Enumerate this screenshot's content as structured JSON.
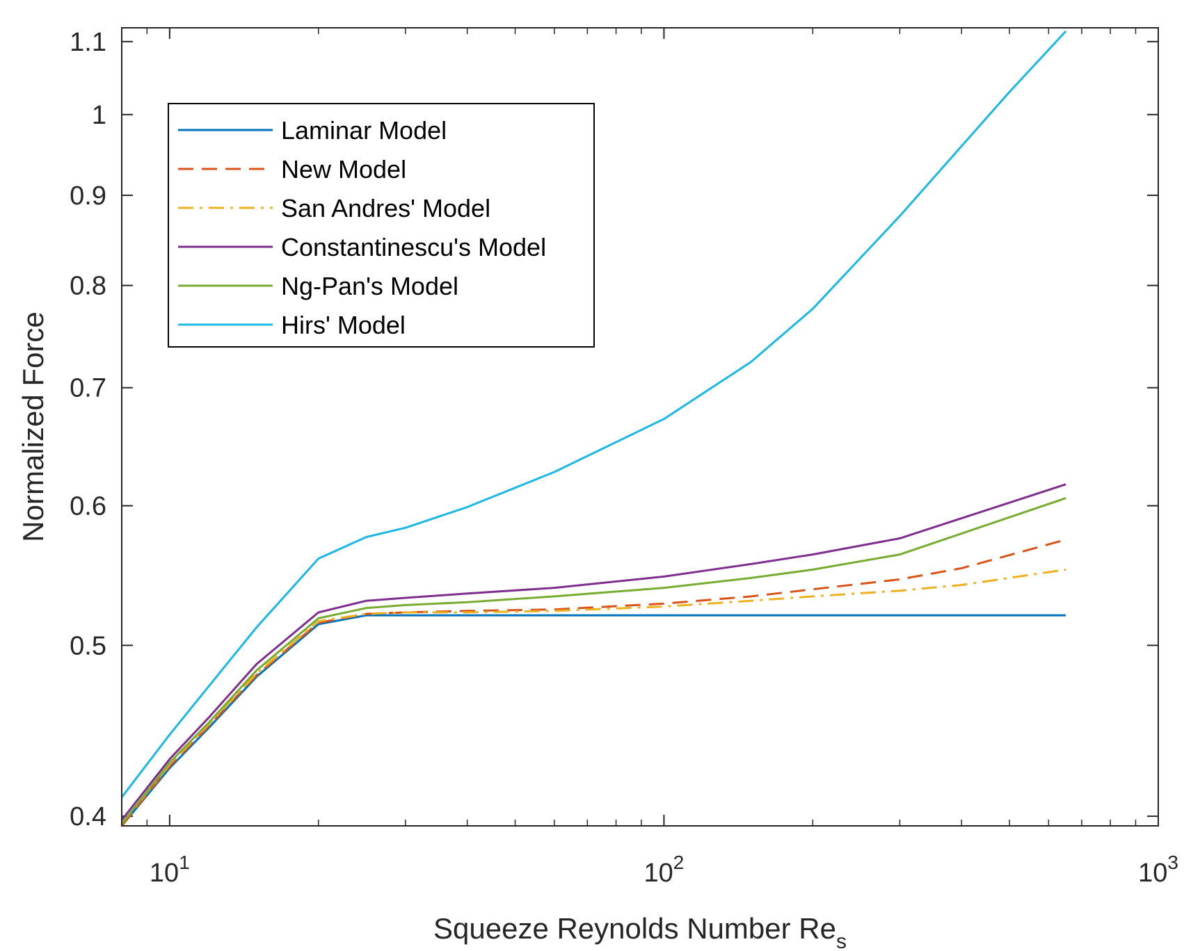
{
  "chart_data": {
    "type": "line",
    "xscale": "log",
    "yscale": "log",
    "xlabel": "Squeeze Reynolds Number Re",
    "xlabel_subscript": "s",
    "ylabel": "Normalized Force",
    "xlim": [
      8,
      1000
    ],
    "ylim": [
      0.395,
      1.12
    ],
    "xticks": [
      {
        "value": 10,
        "base": "10",
        "exp": "1"
      },
      {
        "value": 100,
        "base": "10",
        "exp": "2"
      },
      {
        "value": 1000,
        "base": "10",
        "exp": "3"
      }
    ],
    "yticks": [
      {
        "value": 0.4,
        "label": "0.4"
      },
      {
        "value": 0.5,
        "label": "0.5"
      },
      {
        "value": 0.6,
        "label": "0.6"
      },
      {
        "value": 0.7,
        "label": "0.7"
      },
      {
        "value": 0.8,
        "label": "0.8"
      },
      {
        "value": 0.9,
        "label": "0.9"
      },
      {
        "value": 1.0,
        "label": "1"
      },
      {
        "value": 1.1,
        "label": "1.1"
      }
    ],
    "legend_position": "top-left",
    "series": [
      {
        "name": "Laminar Model",
        "color": "#0072BD",
        "dash": "solid",
        "x": [
          8,
          10,
          12,
          15,
          20,
          25,
          30,
          40,
          60,
          100,
          200,
          300,
          650
        ],
        "y": [
          0.395,
          0.426,
          0.449,
          0.48,
          0.514,
          0.52,
          0.52,
          0.52,
          0.52,
          0.52,
          0.52,
          0.52,
          0.52
        ]
      },
      {
        "name": "New Model",
        "color": "#D95319",
        "dash": "dashed",
        "x": [
          8,
          10,
          12,
          15,
          20,
          25,
          30,
          40,
          60,
          100,
          150,
          200,
          300,
          400,
          650
        ],
        "y": [
          0.395,
          0.427,
          0.45,
          0.481,
          0.515,
          0.521,
          0.522,
          0.523,
          0.524,
          0.528,
          0.533,
          0.538,
          0.545,
          0.553,
          0.574
        ]
      },
      {
        "name": "San Andres' Model",
        "color": "#EDB120",
        "dash": "dashdot",
        "x": [
          8,
          10,
          12,
          15,
          20,
          25,
          30,
          40,
          60,
          100,
          150,
          200,
          300,
          400,
          650
        ],
        "y": [
          0.396,
          0.428,
          0.451,
          0.482,
          0.516,
          0.521,
          0.522,
          0.522,
          0.523,
          0.526,
          0.53,
          0.533,
          0.537,
          0.541,
          0.552
        ]
      },
      {
        "name": "Constantinescu's Model",
        "color": "#7E2F8E",
        "dash": "solid",
        "x": [
          8,
          10,
          12,
          15,
          20,
          25,
          30,
          40,
          60,
          100,
          150,
          200,
          300,
          650
        ],
        "y": [
          0.398,
          0.431,
          0.455,
          0.488,
          0.522,
          0.53,
          0.532,
          0.535,
          0.539,
          0.547,
          0.556,
          0.563,
          0.575,
          0.617
        ]
      },
      {
        "name": "Ng-Pan's Model",
        "color": "#77AC30",
        "dash": "solid",
        "x": [
          8,
          10,
          12,
          15,
          20,
          25,
          30,
          40,
          60,
          100,
          150,
          200,
          300,
          650
        ],
        "y": [
          0.396,
          0.429,
          0.452,
          0.484,
          0.518,
          0.525,
          0.527,
          0.529,
          0.533,
          0.539,
          0.546,
          0.552,
          0.563,
          0.606
        ]
      },
      {
        "name": "Hirs' Model",
        "color": "#1BB8E6",
        "dash": "solid",
        "x": [
          8,
          10,
          12,
          15,
          20,
          25,
          30,
          40,
          60,
          100,
          150,
          200,
          300,
          500,
          650
        ],
        "y": [
          0.41,
          0.445,
          0.474,
          0.512,
          0.56,
          0.576,
          0.583,
          0.599,
          0.627,
          0.672,
          0.724,
          0.776,
          0.876,
          1.03,
          1.115
        ]
      }
    ]
  }
}
